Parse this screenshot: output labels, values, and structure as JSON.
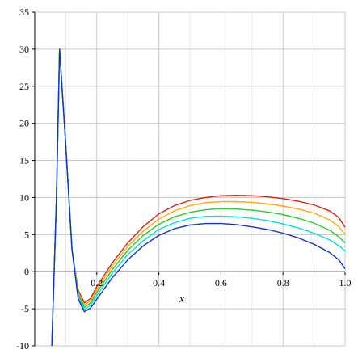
{
  "chart_data": {
    "type": "line",
    "title": "",
    "xlabel": "x",
    "ylabel": "",
    "xlim": [
      0,
      1.0
    ],
    "ylim": [
      -10,
      35
    ],
    "grid": true,
    "x_ticks": [
      0.2,
      0.4,
      0.6,
      0.8,
      1.0
    ],
    "x_tick_labels": [
      "0.2",
      "0.4",
      "0.6",
      "0.8",
      "1.0"
    ],
    "y_ticks": [
      -10,
      -5,
      0,
      5,
      10,
      15,
      20,
      25,
      30,
      35
    ],
    "y_tick_labels": [
      "-10",
      "-5",
      "0",
      "5",
      "10",
      "15",
      "20",
      "25",
      "30",
      "35"
    ],
    "series": [
      {
        "color": "#dd2211",
        "x": [
          0.055,
          0.07,
          0.08,
          0.1,
          0.12,
          0.14,
          0.16,
          0.18,
          0.2,
          0.25,
          0.3,
          0.35,
          0.4,
          0.45,
          0.5,
          0.55,
          0.6,
          0.65,
          0.7,
          0.75,
          0.8,
          0.85,
          0.9,
          0.95,
          0.98,
          1.0
        ],
        "y": [
          -10,
          10,
          30,
          17,
          3,
          -2.5,
          -4.2,
          -3.6,
          -2.0,
          1.2,
          3.9,
          6.1,
          7.8,
          8.9,
          9.6,
          10.0,
          10.25,
          10.3,
          10.25,
          10.1,
          9.85,
          9.5,
          9.0,
          8.2,
          7.3,
          6.0
        ]
      },
      {
        "color": "#ffaa00",
        "x": [
          0.055,
          0.07,
          0.08,
          0.1,
          0.12,
          0.14,
          0.16,
          0.18,
          0.2,
          0.25,
          0.3,
          0.35,
          0.4,
          0.45,
          0.5,
          0.55,
          0.6,
          0.65,
          0.7,
          0.75,
          0.8,
          0.85,
          0.9,
          0.95,
          0.98,
          1.0
        ],
        "y": [
          -10,
          10,
          30,
          17,
          3,
          -2.8,
          -4.5,
          -3.9,
          -2.4,
          0.8,
          3.4,
          5.5,
          7.1,
          8.2,
          8.9,
          9.3,
          9.45,
          9.45,
          9.35,
          9.15,
          8.85,
          8.45,
          7.9,
          7.0,
          6.1,
          5.0
        ]
      },
      {
        "color": "#22cc33",
        "x": [
          0.055,
          0.07,
          0.08,
          0.1,
          0.12,
          0.14,
          0.16,
          0.18,
          0.2,
          0.25,
          0.3,
          0.35,
          0.4,
          0.45,
          0.5,
          0.55,
          0.6,
          0.65,
          0.7,
          0.75,
          0.8,
          0.85,
          0.9,
          0.95,
          0.98,
          1.0
        ],
        "y": [
          -10,
          10,
          30,
          17,
          3,
          -3.1,
          -4.8,
          -4.2,
          -2.8,
          0.3,
          2.9,
          4.9,
          6.4,
          7.4,
          8.0,
          8.35,
          8.5,
          8.45,
          8.3,
          8.05,
          7.7,
          7.2,
          6.55,
          5.6,
          4.7,
          3.9
        ]
      },
      {
        "color": "#00e0e0",
        "x": [
          0.055,
          0.07,
          0.08,
          0.1,
          0.12,
          0.14,
          0.16,
          0.18,
          0.2,
          0.25,
          0.3,
          0.35,
          0.4,
          0.45,
          0.5,
          0.55,
          0.6,
          0.65,
          0.7,
          0.75,
          0.8,
          0.85,
          0.9,
          0.95,
          0.98,
          1.0
        ],
        "y": [
          -10,
          10,
          30,
          17,
          3,
          -3.4,
          -5.1,
          -4.5,
          -3.2,
          -0.2,
          2.3,
          4.2,
          5.7,
          6.6,
          7.2,
          7.45,
          7.5,
          7.4,
          7.2,
          6.9,
          6.45,
          5.9,
          5.2,
          4.3,
          3.5,
          2.8
        ]
      },
      {
        "color": "#1133cc",
        "x": [
          0.055,
          0.07,
          0.08,
          0.1,
          0.12,
          0.14,
          0.16,
          0.18,
          0.2,
          0.25,
          0.3,
          0.35,
          0.4,
          0.45,
          0.5,
          0.55,
          0.6,
          0.65,
          0.7,
          0.75,
          0.8,
          0.85,
          0.9,
          0.95,
          0.98,
          1.0
        ],
        "y": [
          -10,
          10,
          30,
          17,
          3,
          -3.7,
          -5.4,
          -4.9,
          -3.7,
          -0.8,
          1.6,
          3.5,
          4.9,
          5.8,
          6.3,
          6.5,
          6.5,
          6.35,
          6.05,
          5.7,
          5.2,
          4.55,
          3.7,
          2.6,
          1.6,
          0.4
        ]
      }
    ]
  }
}
